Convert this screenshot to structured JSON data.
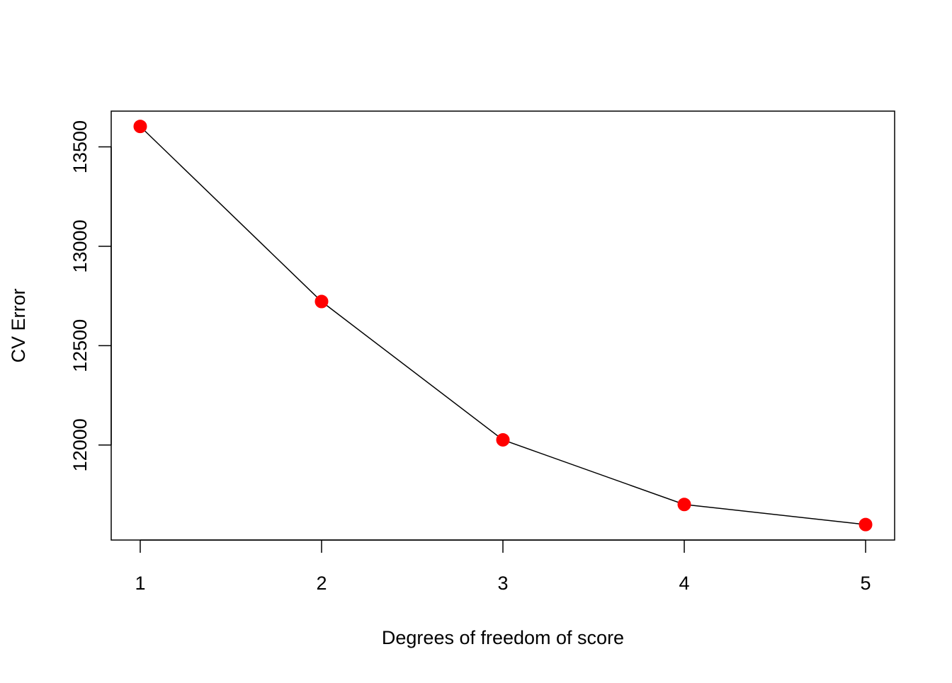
{
  "chart_data": {
    "type": "line",
    "title": "",
    "xlabel": "Degrees of freedom of score",
    "ylabel": "CV Error",
    "x": [
      1,
      2,
      3,
      4,
      5
    ],
    "y": [
      13603,
      12722,
      12026,
      11701,
      11600
    ],
    "xticks": [
      "1",
      "2",
      "3",
      "4",
      "5"
    ],
    "yticks": [
      "12000",
      "12500",
      "13000",
      "13500"
    ],
    "ytick_values": [
      12000,
      12500,
      13000,
      13500
    ],
    "xlim": [
      0.84,
      5.16
    ],
    "ylim": [
      11522,
      13680
    ],
    "grid": false,
    "legend": "none",
    "line_color": "#000000",
    "point_color": "#ff0000"
  }
}
